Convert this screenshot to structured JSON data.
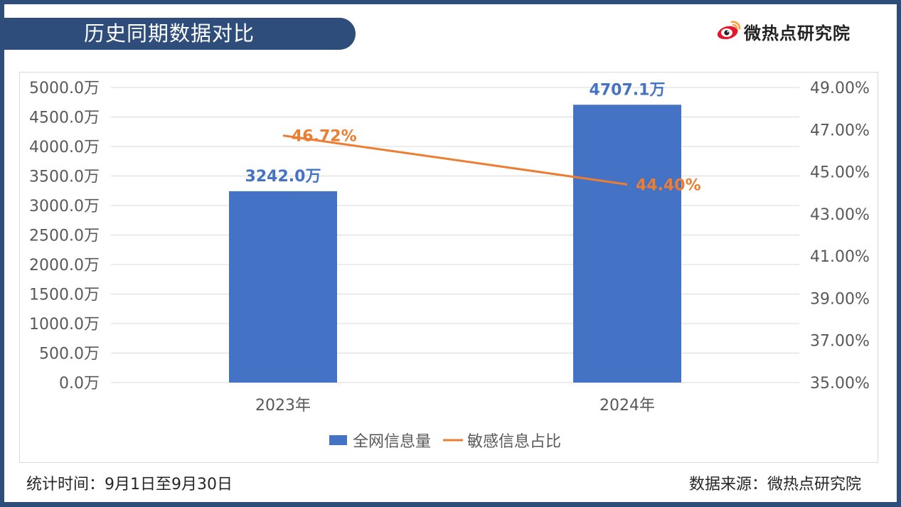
{
  "header": {
    "title": "历史同期数据对比",
    "logo_text": "微热点研究院"
  },
  "footer": {
    "time_label": "统计时间：9月1日至9月30日",
    "source_label": "数据来源：微热点研究院"
  },
  "colors": {
    "frame": "#2e4d7a",
    "bar": "#4472c4",
    "line": "#ed7d31",
    "grid": "#d9d9d9",
    "axis_text": "#595959",
    "logo_red": "#e6162d",
    "logo_orange": "#ff9933"
  },
  "chart_data": {
    "type": "bar",
    "title": "",
    "categories": [
      "2023年",
      "2024年"
    ],
    "series": [
      {
        "name": "全网信息量",
        "kind": "bar",
        "axis": "left",
        "values": [
          3242.0,
          4707.1
        ],
        "labels": [
          "3242.0万",
          "4707.1万"
        ]
      },
      {
        "name": "敏感信息占比",
        "kind": "line",
        "axis": "right",
        "values": [
          46.72,
          44.4
        ],
        "labels": [
          "46.72%",
          "44.40%"
        ]
      }
    ],
    "y_left": {
      "min": 0,
      "max": 5000,
      "step": 500,
      "tick_labels": [
        "0.0万",
        "500.0万",
        "1000.0万",
        "1500.0万",
        "2000.0万",
        "2500.0万",
        "3000.0万",
        "3500.0万",
        "4000.0万",
        "4500.0万",
        "5000.0万"
      ]
    },
    "y_right": {
      "min": 35,
      "max": 49,
      "step": 2,
      "tick_labels": [
        "35.00%",
        "37.00%",
        "39.00%",
        "41.00%",
        "43.00%",
        "45.00%",
        "47.00%",
        "49.00%"
      ]
    },
    "legend_position": "bottom-center",
    "grid": true
  }
}
